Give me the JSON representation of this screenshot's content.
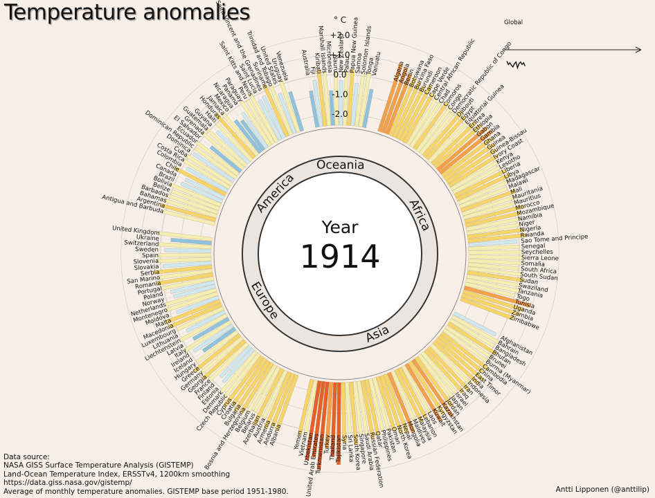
{
  "title": "Temperature anomalies",
  "source_lines": [
    "Data source:",
    "NASA GISS Surface Temperature Analysis (GISTEMP)",
    "Land-Ocean Temperature Index, ERSSTv4, 1200km smoothing",
    "https://data.giss.nasa.gov/gistemp/",
    "Average of monthly temperature anomalies. GISTEMP base period 1951-1980."
  ],
  "credit": "Antti Lipponen (@anttilip)",
  "colors": {
    "background": "#f7efe8",
    "inner_disc": "#ffffff",
    "ring": "#333333",
    "cold_strong": "#8fc3dd",
    "cold_light": "#cfe8f0",
    "neutral": "#f4eeb2",
    "warm_light": "#f5d56a",
    "warm": "#f3a04a",
    "hot": "#e4622a"
  },
  "chart_data": {
    "type": "bar",
    "layout": "radial",
    "year_label": "Year",
    "year": "1914",
    "unit_label": "° C",
    "ticks": [
      "+2.0",
      "+1.0",
      "0.0",
      "-1.0",
      "-2.0"
    ],
    "tick_values": [
      2,
      1,
      0,
      -1,
      -2
    ],
    "ylim": [
      -2.5,
      2.5
    ],
    "regions": [
      {
        "name": "Africa",
        "countries": [
          "Algeria",
          "Angola",
          "Benin",
          "Botswana",
          "Burkina Faso",
          "Burundi",
          "Cameroon",
          "Cape Verde",
          "Central African Republic",
          "Chad",
          "Comoros",
          "Congo",
          "Democratic Republic of Congo",
          "Djibouti",
          "Egypt",
          "Equatorial Guinea",
          "Eritrea",
          "Ethiopia",
          "Gabon",
          "Gambia",
          "Ghana",
          "Guinea",
          "Guinea-Bissau",
          "Ivory Coast",
          "Kenya",
          "Lesotho",
          "Liberia",
          "Libya",
          "Madagascar",
          "Malawi",
          "Mali",
          "Mauritania",
          "Mauritius",
          "Morocco",
          "Mozambique",
          "Namibia",
          "Niger",
          "Nigeria",
          "Rwanda",
          "Sao Tome and Principe",
          "Senegal",
          "Seychelles",
          "Sierra Leone",
          "Somalia",
          "South Africa",
          "South Sudan",
          "Sudan",
          "Swaziland",
          "Tanzania",
          "Togo",
          "Tunisia",
          "Uganda",
          "Zambia",
          "Zimbabwe"
        ]
      },
      {
        "name": "Asia",
        "countries": [
          "Afghanistan",
          "Bahrain",
          "Bangladesh",
          "Bhutan",
          "Brunei",
          "Burma (Myanmar)",
          "Cambodia",
          "China",
          "East Timor",
          "India",
          "Indonesia",
          "Iran",
          "Iraq",
          "Israel",
          "Japan",
          "Jordan",
          "Kazakhstan",
          "Kyrgyzstan",
          "Kuwait",
          "Laos",
          "Lebanon",
          "Malaysia",
          "Maldives",
          "Mongolia",
          "Nepal",
          "North Korea",
          "Oman",
          "Pakistan",
          "Philippines",
          "Qatar",
          "Russian Federation",
          "Saudi Arabia",
          "Singapore",
          "South Korea",
          "Sri Lanka",
          "Syria",
          "Tajikistan",
          "Thailand",
          "Turkey",
          "Turkmenistan",
          "United Arab Emirates",
          "Uzbekistan",
          "Vietnam",
          "Yemen"
        ]
      },
      {
        "name": "Europe",
        "countries": [
          "Albania",
          "Andorra",
          "Armenia",
          "Austria",
          "Azerbaijan",
          "Belarus",
          "Belgium",
          "Bosnia and Herzegovina",
          "Bulgaria",
          "Croatia",
          "Cyprus",
          "Czech Republic",
          "Denmark",
          "Estonia",
          "Finland",
          "France",
          "Georgia",
          "Germany",
          "Greece",
          "Hungary",
          "Iceland",
          "Ireland",
          "Italy",
          "Latvia",
          "Liechtenstein",
          "Lithuania",
          "Luxembourg",
          "Macedonia",
          "Malta",
          "Moldova",
          "Montenegro",
          "Netherlands",
          "Norway",
          "Poland",
          "Portugal",
          "Romania",
          "San Marino",
          "Serbia",
          "Slovakia",
          "Slovenia",
          "Spain",
          "Sweden",
          "Switzerland",
          "Ukraine",
          "United Kingdom"
        ]
      },
      {
        "name": "America",
        "countries": [
          "Antigua and Barbuda",
          "Argentina",
          "Bahamas",
          "Barbados",
          "Belize",
          "Bolivia",
          "Brazil",
          "Canada",
          "Chile",
          "Colombia",
          "Costa Rica",
          "Cuba",
          "Dominica",
          "Dominican Republic",
          "Ecuador",
          "El Salvador",
          "Grenada",
          "Guatemala",
          "Guyana",
          "Haiti",
          "Honduras",
          "Jamaica",
          "Mexico",
          "Nicaragua",
          "Panama",
          "Paraguay",
          "Peru",
          "Saint Kitts and Nevis",
          "Saint Lucia",
          "Saint Vincent and the Grenadines",
          "Suriname",
          "Trinidad and Tobago",
          "United States",
          "Uruguay",
          "Venezuela"
        ]
      },
      {
        "name": "Oceania",
        "countries": [
          "Australia",
          "Fiji",
          "Kiribati",
          "Marshall Islands",
          "Micronesia",
          "Nauru",
          "New Zealand",
          "Palau",
          "Papua New Guinea",
          "Samoa",
          "Solomon Islands",
          "Tonga",
          "Vanuatu"
        ]
      }
    ],
    "anomalies": {
      "Africa": [
        1.0,
        0.9,
        0.7,
        0.6,
        0.5,
        0.4,
        0.6,
        0.3,
        0.2,
        0.1,
        0.3,
        0.2,
        0.1,
        0.4,
        0.3,
        0.2,
        0.5,
        0.6,
        0.7,
        0.8,
        0.6,
        0.5,
        0.4,
        0.3,
        0.2,
        0.1,
        0.3,
        0.4,
        0.2,
        0.0,
        0.3,
        0.2,
        0.1,
        0.5,
        0.3,
        0.2,
        0.1,
        0.3,
        0.4,
        -0.1,
        0.0,
        0.1,
        0.2,
        0.1,
        0.0,
        0.2,
        0.3,
        0.1,
        0.2,
        0.0,
        0.9,
        0.6,
        0.5,
        0.3
      ],
      "Asia": [
        -0.2,
        0.1,
        0.0,
        0.3,
        0.2,
        0.1,
        0.4,
        0.3,
        0.6,
        0.5,
        0.2,
        0.4,
        0.3,
        0.1,
        0.2,
        0.5,
        0.9,
        0.6,
        0.8,
        0.2,
        0.3,
        0.4,
        0.1,
        0.7,
        0.6,
        0.5,
        0.3,
        0.2,
        0.1,
        0.3,
        0.4,
        0.2,
        0.1,
        0.6,
        0.0,
        0.5,
        1.6,
        1.2,
        0.8,
        1.9,
        1.3,
        1.5,
        0.2,
        0.3
      ],
      "Europe": [
        0.4,
        0.3,
        0.5,
        0.1,
        0.6,
        0.0,
        0.2,
        0.4,
        0.5,
        0.3,
        0.6,
        0.2,
        0.1,
        -0.3,
        -0.4,
        0.1,
        0.3,
        0.2,
        0.4,
        0.0,
        -0.6,
        -0.2,
        0.2,
        -0.5,
        0.1,
        -0.4,
        0.0,
        0.3,
        0.4,
        -0.3,
        0.2,
        0.1,
        -0.4,
        -0.3,
        0.1,
        0.3,
        0.2,
        0.4,
        -0.1,
        0.2,
        0.1,
        -0.2,
        0.1,
        -0.5,
        0.2
      ],
      "America": [
        0.1,
        0.3,
        0.2,
        0.1,
        0.0,
        0.2,
        -0.3,
        -0.4,
        0.3,
        -0.2,
        0.1,
        0.2,
        -0.1,
        0.0,
        0.1,
        -0.6,
        0.2,
        0.1,
        -0.3,
        0.0,
        0.4,
        0.2,
        -0.5,
        -0.7,
        -0.4,
        0.1,
        0.0,
        0.2,
        -0.3,
        -0.2,
        0.3,
        0.1,
        -0.4,
        0.2,
        -0.5
      ],
      "Oceania": [
        -0.7,
        -0.2,
        0.3,
        0.2,
        -0.8,
        0.1,
        -0.3,
        0.2,
        0.3,
        -0.4,
        0.1,
        0.2,
        -0.6
      ]
    },
    "global_series": {
      "title": "Global",
      "values": [
        0.3,
        -0.1,
        0.1,
        -0.2,
        -0.4,
        0.0,
        0.2,
        -0.5,
        0.0,
        0.2,
        -0.1,
        0.1,
        -0.3
      ]
    }
  }
}
